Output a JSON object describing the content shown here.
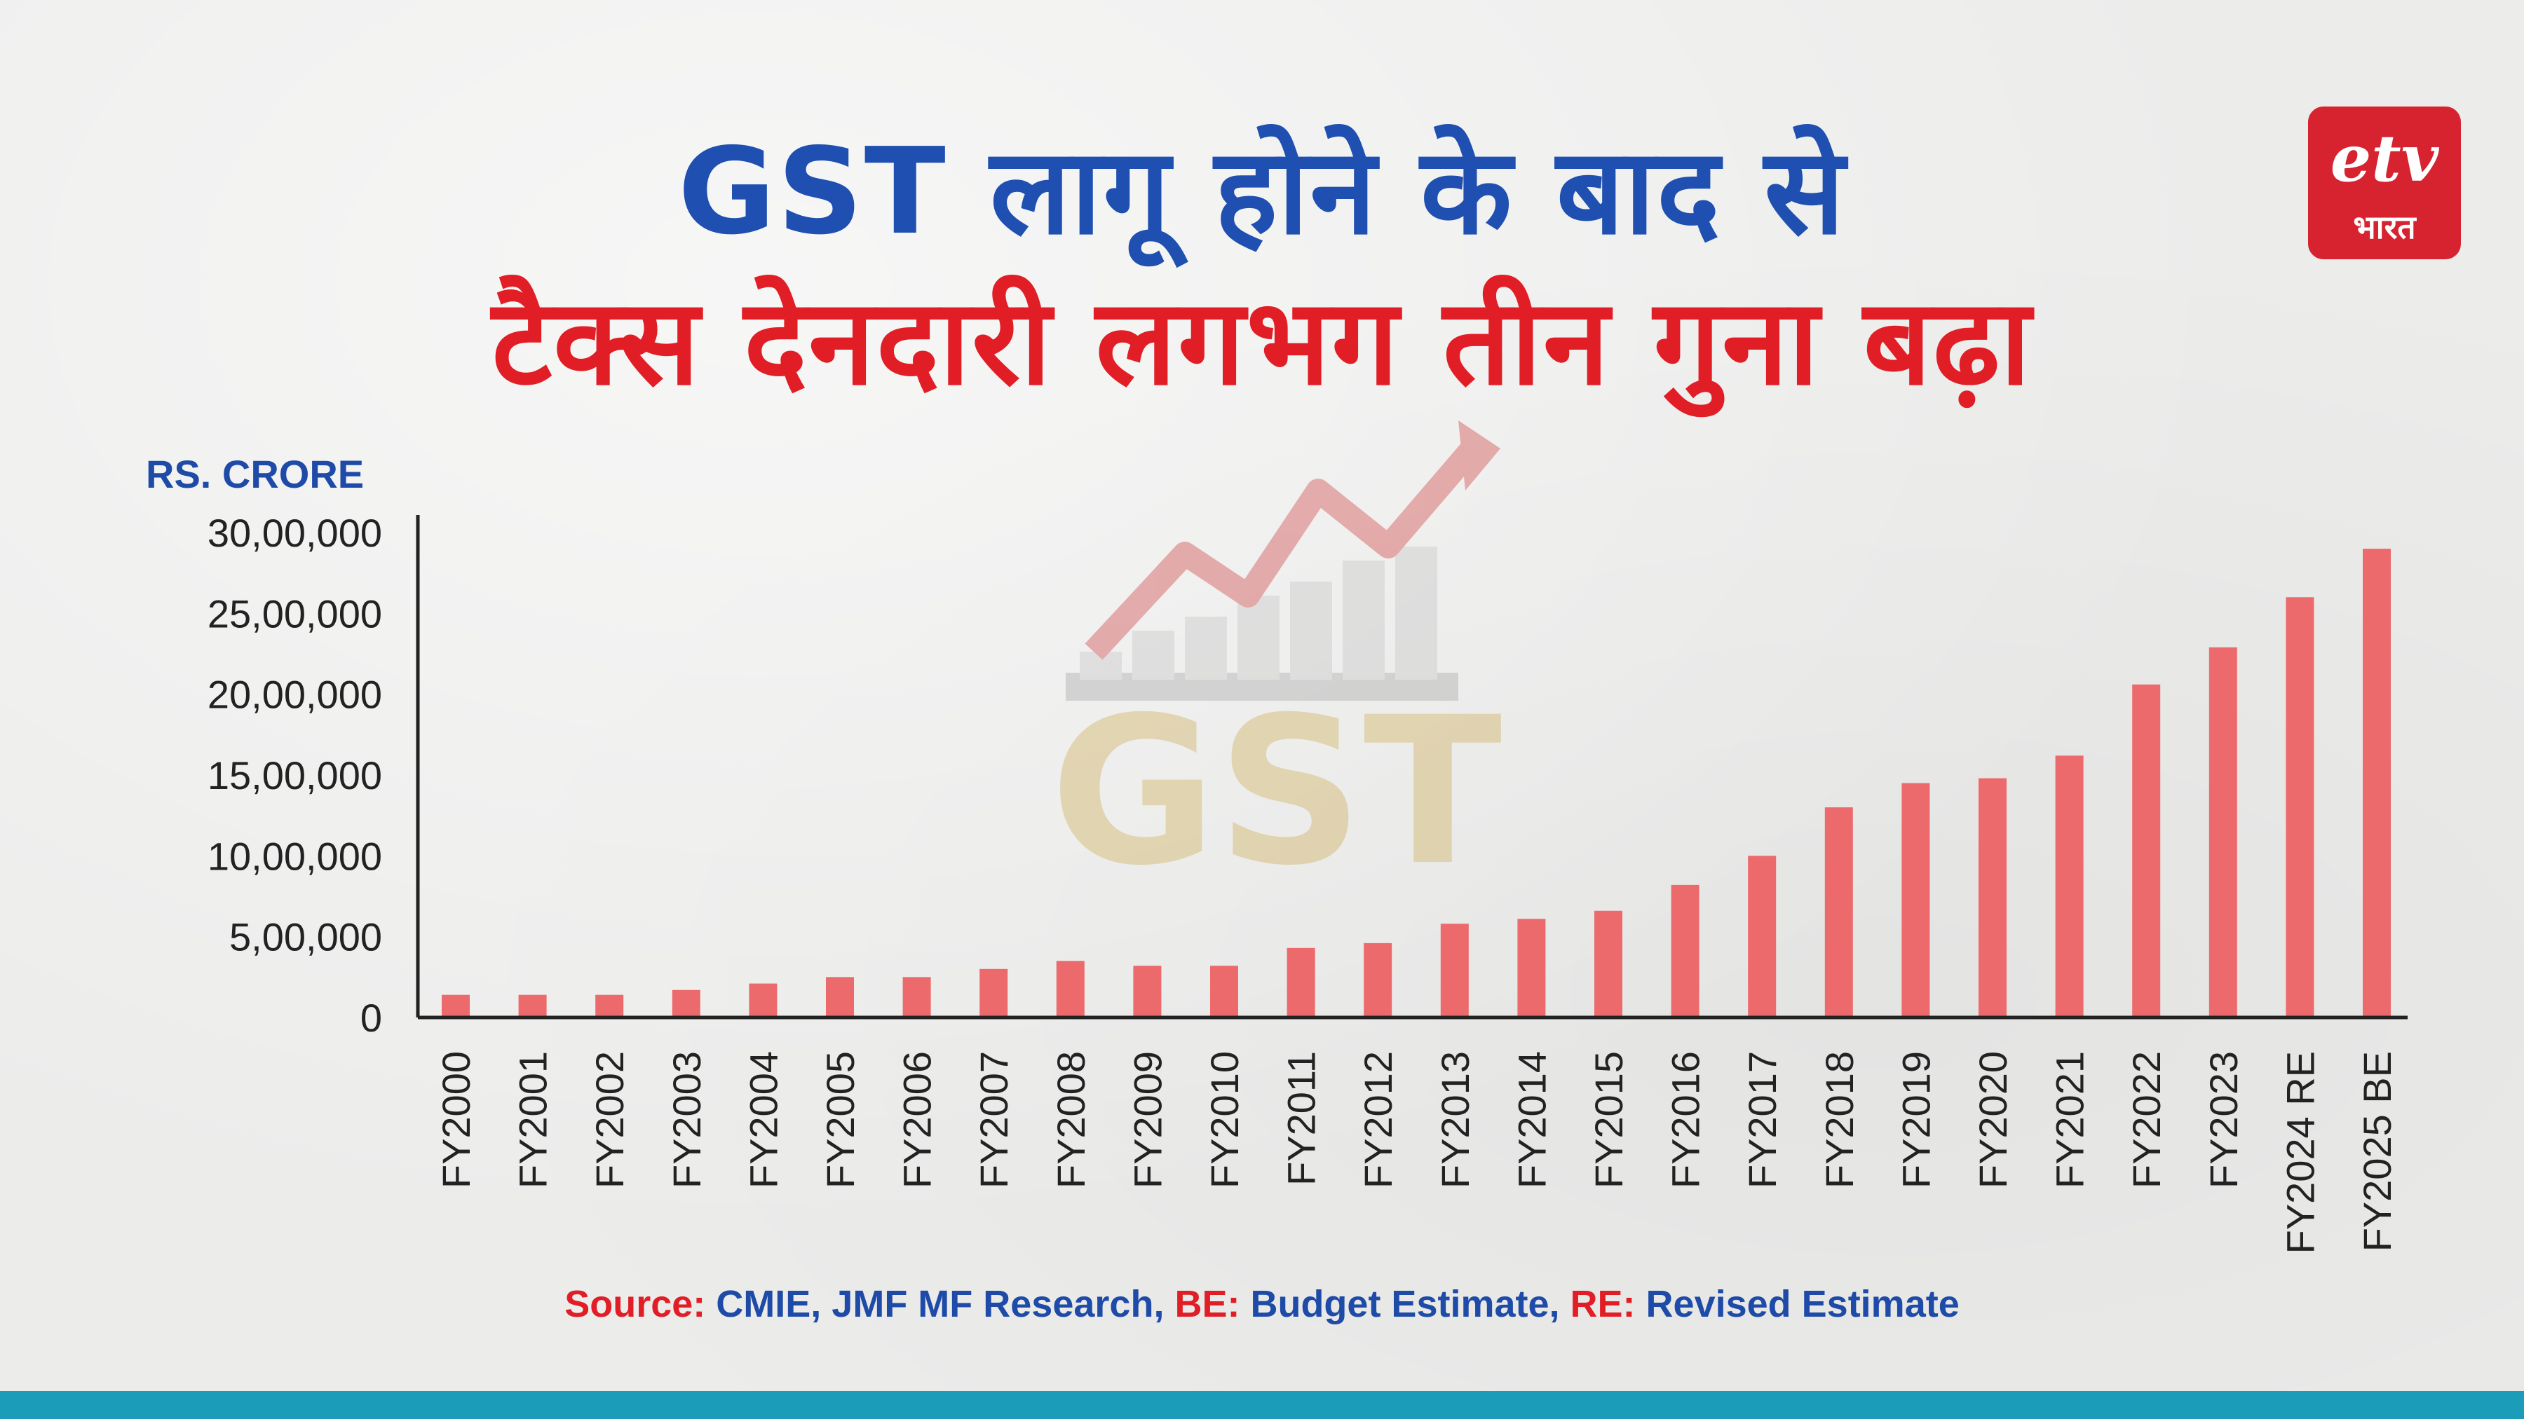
{
  "headline": {
    "line1": "GST लागू होने के बाद से",
    "line2": "टैक्स देनदारी लगभग तीन गुना बढ़ा"
  },
  "logo": {
    "mark": "etv",
    "sub": "भारत"
  },
  "colors": {
    "bar": "#ec6a6c",
    "title_blue": "#1f4fb0",
    "title_red": "#e11e26",
    "bottom_bar": "#1b9cb8",
    "logo_bg": "#d7232f"
  },
  "watermark": {
    "text": "GST",
    "icon": "growth-chart-arrow-icon"
  },
  "chart_data": {
    "type": "bar",
    "ylabel": "RS. CRORE",
    "ylim": [
      0,
      3000000
    ],
    "yticks": [
      0,
      500000,
      1000000,
      1500000,
      2000000,
      2500000,
      3000000
    ],
    "ytick_labels": [
      "0",
      "5,00,000",
      "10,00,000",
      "15,00,000",
      "20,00,000",
      "25,00,000",
      "30,00,000"
    ],
    "categories": [
      "FY2000",
      "FY2001",
      "FY2002",
      "FY2003",
      "FY2004",
      "FY2005",
      "FY2006",
      "FY2007",
      "FY2008",
      "FY2009",
      "FY2010",
      "FY2011",
      "FY2012",
      "FY2013",
      "FY2014",
      "FY2015",
      "FY2016",
      "FY2017",
      "FY2018",
      "FY2019",
      "FY2020",
      "FY2021",
      "FY2022",
      "FY2023",
      "FY2024 RE",
      "FY2025 BE"
    ],
    "values": [
      140000,
      140000,
      140000,
      170000,
      210000,
      250000,
      250000,
      300000,
      350000,
      320000,
      320000,
      430000,
      460000,
      580000,
      610000,
      660000,
      820000,
      1000000,
      1300000,
      1450000,
      1480000,
      1620000,
      2060000,
      2290000,
      2600000,
      2900000
    ],
    "grid": false,
    "legend": "none"
  },
  "source": {
    "parts": [
      {
        "text": "Source:",
        "color": "red"
      },
      {
        "text": " CMIE, JMF MF Research, ",
        "color": "blue"
      },
      {
        "text": "BE:",
        "color": "red"
      },
      {
        "text": " Budget Estimate, ",
        "color": "blue"
      },
      {
        "text": "RE:",
        "color": "red"
      },
      {
        "text": " Revised Estimate",
        "color": "blue"
      }
    ]
  }
}
